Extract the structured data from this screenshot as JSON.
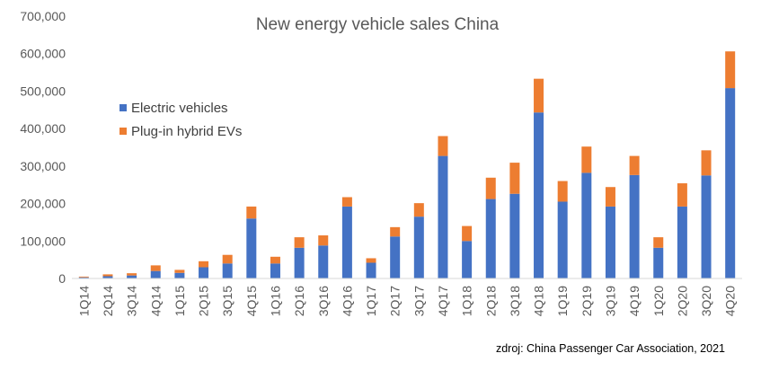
{
  "chart_data": {
    "type": "bar",
    "stacked": true,
    "title": "New energy vehicle sales China",
    "xlabel": "",
    "ylabel": "",
    "ylim": [
      0,
      700000
    ],
    "yticks": [
      "0",
      "100,000",
      "200,000",
      "300,000",
      "400,000",
      "500,000",
      "600,000",
      "700,000"
    ],
    "grid": false,
    "legend_position": "upper-left",
    "categories": [
      "1Q14",
      "2Q14",
      "3Q14",
      "4Q14",
      "1Q15",
      "2Q15",
      "3Q15",
      "4Q15",
      "1Q16",
      "2Q16",
      "3Q16",
      "4Q16",
      "1Q17",
      "2Q17",
      "3Q17",
      "4Q17",
      "1Q18",
      "2Q18",
      "3Q18",
      "4Q18",
      "1Q19",
      "2Q19",
      "3Q19",
      "4Q19",
      "1Q20",
      "2Q20",
      "3Q20",
      "4Q20"
    ],
    "series": [
      {
        "name": "Electric vehicles",
        "color": "#4472C4",
        "values": [
          3000,
          6000,
          8000,
          20000,
          15000,
          30000,
          40000,
          160000,
          40000,
          82000,
          88000,
          192000,
          42000,
          112000,
          165000,
          327000,
          100000,
          212000,
          226000,
          443000,
          205000,
          282000,
          192000,
          276000,
          82000,
          192000,
          275000,
          508000
        ]
      },
      {
        "name": "Plug-in hybrid EVs",
        "color": "#ED7D31",
        "values": [
          2000,
          5000,
          6000,
          15000,
          8000,
          16000,
          23000,
          32000,
          18000,
          28000,
          27000,
          25000,
          12000,
          25000,
          36000,
          53000,
          40000,
          57000,
          83000,
          90000,
          55000,
          70000,
          52000,
          51000,
          28000,
          62000,
          67000,
          98000
        ]
      }
    ],
    "source_note": "zdroj: China Passenger Car Association, 2021"
  }
}
